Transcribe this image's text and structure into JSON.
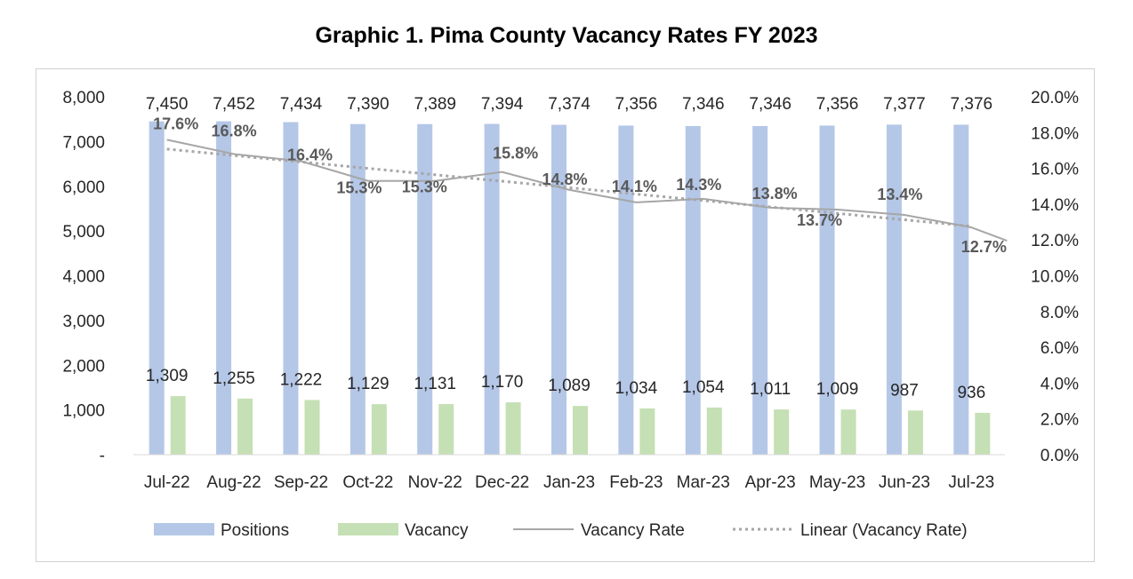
{
  "chart_data": {
    "type": "bar",
    "title": "Graphic 1. Pima County Vacancy Rates FY 2023",
    "categories": [
      "Jul-22",
      "Aug-22",
      "Sep-22",
      "Oct-22",
      "Nov-22",
      "Dec-22",
      "Jan-23",
      "Feb-23",
      "Mar-23",
      "Apr-23",
      "May-23",
      "Jun-23",
      "Jul-23"
    ],
    "series": [
      {
        "name": "Positions",
        "kind": "bar",
        "axis": "left",
        "color": "#b4c7e7",
        "values": [
          7450,
          7452,
          7434,
          7390,
          7389,
          7394,
          7374,
          7356,
          7346,
          7346,
          7356,
          7377,
          7376
        ],
        "labels": [
          "7,450",
          "7,452",
          "7,434",
          "7,390",
          "7,389",
          "7,394",
          "7,374",
          "7,356",
          "7,346",
          "7,346",
          "7,356",
          "7,377",
          "7,376"
        ]
      },
      {
        "name": "Vacancy",
        "kind": "bar",
        "axis": "left",
        "color": "#c5e0b4",
        "values": [
          1309,
          1255,
          1222,
          1129,
          1131,
          1170,
          1089,
          1034,
          1054,
          1011,
          1009,
          987,
          936
        ],
        "labels": [
          "1,309",
          "1,255",
          "1,222",
          "1,129",
          "1,131",
          "1,170",
          "1,089",
          "1,034",
          "1,054",
          "1,011",
          "1,009",
          "987",
          "936"
        ]
      },
      {
        "name": "Vacancy Rate",
        "kind": "line",
        "axis": "right",
        "color": "#a6a6a6",
        "values": [
          17.6,
          16.8,
          16.4,
          15.3,
          15.3,
          15.8,
          14.8,
          14.1,
          14.3,
          13.8,
          13.7,
          13.4,
          12.7
        ],
        "labels": [
          "17.6%",
          "16.8%",
          "16.4%",
          "15.3%",
          "15.3%",
          "15.8%",
          "14.8%",
          "14.1%",
          "14.3%",
          "13.8%",
          "13.7%",
          "13.4%",
          "12.7%"
        ],
        "highlight_color": "#548235"
      },
      {
        "name": "Linear (Vacancy Rate)",
        "kind": "trendline",
        "axis": "right",
        "color": "#a6a6a6"
      }
    ],
    "left_axis": {
      "min": 0,
      "max": 8000,
      "ticks": [
        "-",
        "1,000",
        "2,000",
        "3,000",
        "4,000",
        "5,000",
        "6,000",
        "7,000",
        "8,000"
      ]
    },
    "right_axis": {
      "min": 0,
      "max": 20,
      "ticks": [
        "0.0%",
        "2.0%",
        "4.0%",
        "6.0%",
        "8.0%",
        "10.0%",
        "12.0%",
        "14.0%",
        "16.0%",
        "18.0%",
        "20.0%"
      ]
    },
    "legend_position": "bottom"
  }
}
